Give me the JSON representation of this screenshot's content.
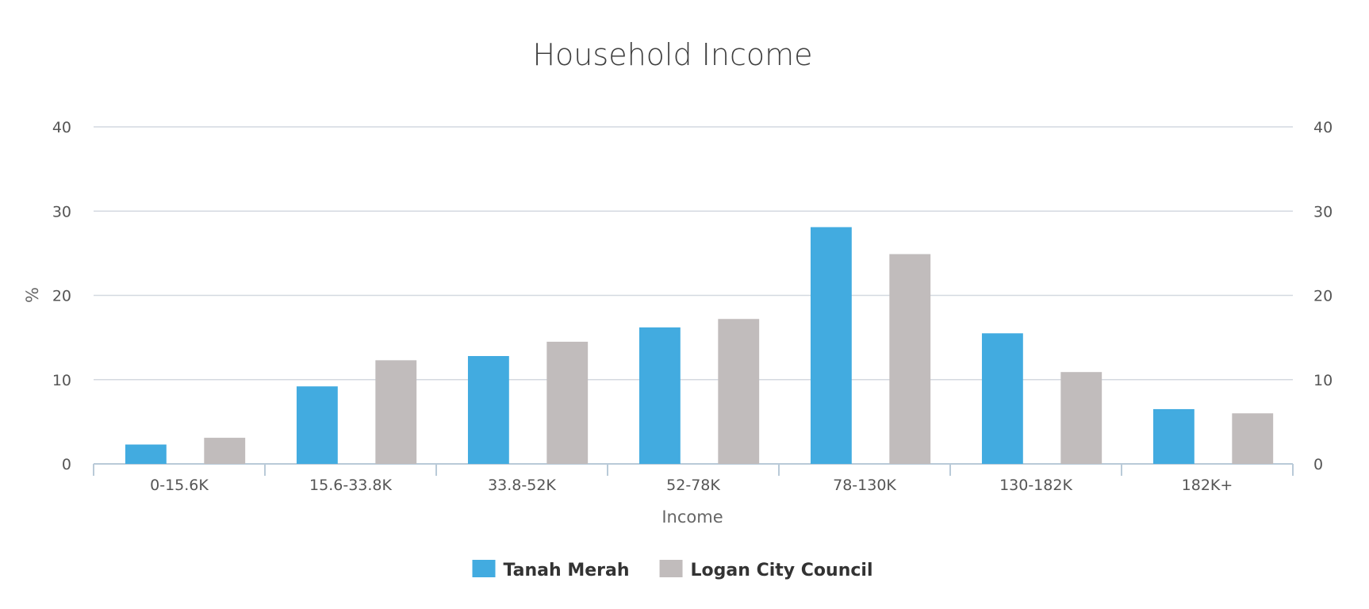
{
  "chart_data": {
    "type": "bar",
    "title": "Household Income",
    "xlabel": "Income",
    "ylabel": "%",
    "ylim": [
      0,
      40
    ],
    "yticks": [
      0,
      10,
      20,
      30,
      40
    ],
    "categories": [
      "0-15.6K",
      "15.6-33.8K",
      "33.8-52K",
      "52-78K",
      "78-130K",
      "130-182K",
      "182K+"
    ],
    "series": [
      {
        "name": "Tanah Merah",
        "color": "#42abe0",
        "values": [
          2.3,
          9.2,
          12.8,
          16.2,
          28.1,
          15.5,
          6.5
        ]
      },
      {
        "name": "Logan City Council",
        "color": "#c1bcbc",
        "values": [
          3.1,
          12.3,
          14.5,
          17.2,
          24.9,
          10.9,
          6.0
        ]
      }
    ],
    "grid": true,
    "secondary_y_axis": true,
    "legend_position": "bottom-center"
  }
}
